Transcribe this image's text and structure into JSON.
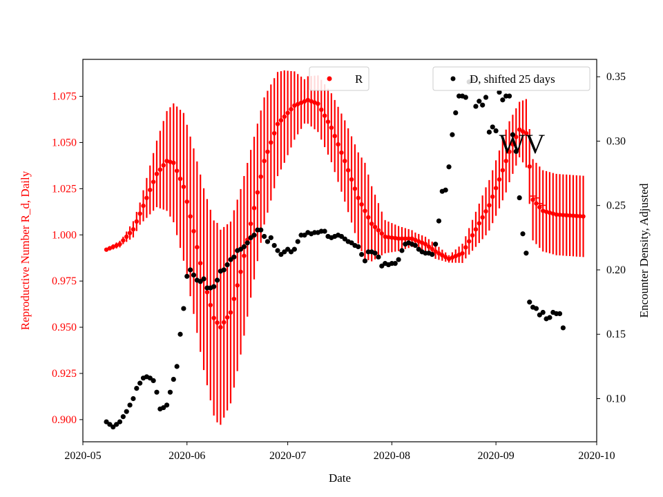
{
  "colors": {
    "r": "#ff0000",
    "d": "#000000"
  },
  "chart_data": {
    "type": "scatter",
    "xlabel": "Date",
    "ylabel_left": "Reproductive Number R_d, Daily",
    "ylabel_right": "Encounter Density, Adjusted",
    "annotation": "WV",
    "xlim": [
      "2020-05-01",
      "2020-10-01"
    ],
    "ylim_left": [
      0.888,
      1.095
    ],
    "ylim_right": [
      0.0665,
      0.3635
    ],
    "x_ticks": [
      "2020-05",
      "2020-06",
      "2020-07",
      "2020-08",
      "2020-09",
      "2020-10"
    ],
    "y_ticks_left": [
      "0.900",
      "0.925",
      "0.950",
      "0.975",
      "1.000",
      "1.025",
      "1.050",
      "1.075"
    ],
    "y_ticks_right": [
      "0.10",
      "0.15",
      "0.20",
      "0.25",
      "0.30",
      "0.35"
    ],
    "legend": {
      "r_label": "R",
      "d_label": "D, shifted 25 days",
      "placement": "top"
    },
    "r_series": {
      "start": "2020-05-08",
      "end": "2020-09-27",
      "ci_end": "2020-09-27",
      "value_knots": [
        [
          "2020-05-08",
          0.992
        ],
        [
          "2020-05-12",
          0.995
        ],
        [
          "2020-05-16",
          1.003
        ],
        [
          "2020-05-20",
          1.02
        ],
        [
          "2020-05-23",
          1.033
        ],
        [
          "2020-05-26",
          1.04
        ],
        [
          "2020-05-28",
          1.039
        ],
        [
          "2020-05-31",
          1.026
        ],
        [
          "2020-06-03",
          1.002
        ],
        [
          "2020-06-06",
          0.976
        ],
        [
          "2020-06-09",
          0.955
        ],
        [
          "2020-06-11",
          0.95
        ],
        [
          "2020-06-14",
          0.958
        ],
        [
          "2020-06-17",
          0.98
        ],
        [
          "2020-06-20",
          1.006
        ],
        [
          "2020-06-24",
          1.04
        ],
        [
          "2020-06-28",
          1.06
        ],
        [
          "2020-07-03",
          1.07
        ],
        [
          "2020-07-07",
          1.073
        ],
        [
          "2020-07-10",
          1.071
        ],
        [
          "2020-07-14",
          1.058
        ],
        [
          "2020-07-18",
          1.04
        ],
        [
          "2020-07-22",
          1.02
        ],
        [
          "2020-07-26",
          1.006
        ],
        [
          "2020-07-30",
          0.999
        ],
        [
          "2020-08-03",
          0.998
        ],
        [
          "2020-08-07",
          0.998
        ],
        [
          "2020-08-11",
          0.995
        ],
        [
          "2020-08-14",
          0.991
        ],
        [
          "2020-08-18",
          0.987
        ],
        [
          "2020-08-22",
          0.99
        ],
        [
          "2020-08-26",
          1.003
        ],
        [
          "2020-08-30",
          1.016
        ],
        [
          "2020-09-02",
          1.03
        ],
        [
          "2020-09-05",
          1.045
        ],
        [
          "2020-09-08",
          1.057
        ],
        [
          "2020-09-10",
          1.055
        ],
        [
          "2020-09-12",
          1.019
        ],
        [
          "2020-09-15",
          1.013
        ],
        [
          "2020-09-19",
          1.011
        ],
        [
          "2020-09-27",
          1.01
        ]
      ],
      "halfwidth_knots": [
        [
          "2020-05-08",
          0.001
        ],
        [
          "2020-05-13",
          0.002
        ],
        [
          "2020-05-18",
          0.006
        ],
        [
          "2020-05-23",
          0.018
        ],
        [
          "2020-05-26",
          0.027
        ],
        [
          "2020-05-31",
          0.04
        ],
        [
          "2020-06-05",
          0.048
        ],
        [
          "2020-06-10",
          0.054
        ],
        [
          "2020-06-15",
          0.048
        ],
        [
          "2020-06-20",
          0.04
        ],
        [
          "2020-06-25",
          0.033
        ],
        [
          "2020-06-30",
          0.025
        ],
        [
          "2020-07-06",
          0.012
        ],
        [
          "2020-07-12",
          0.017
        ],
        [
          "2020-07-18",
          0.022
        ],
        [
          "2020-07-24",
          0.026
        ],
        [
          "2020-07-30",
          0.009
        ],
        [
          "2020-08-08",
          0.004
        ],
        [
          "2020-08-14",
          0.004
        ],
        [
          "2020-08-18",
          0.002
        ],
        [
          "2020-08-23",
          0.006
        ],
        [
          "2020-08-29",
          0.013
        ],
        [
          "2020-09-04",
          0.017
        ],
        [
          "2020-09-08",
          0.015
        ],
        [
          "2020-09-12",
          0.022
        ],
        [
          "2020-09-18",
          0.022
        ],
        [
          "2020-09-27",
          0.022
        ]
      ],
      "extra_dashes": [
        [
          "2020-09-12",
          1.021
        ],
        [
          "2020-09-13",
          1.02
        ],
        [
          "2020-09-14",
          1.017
        ],
        [
          "2020-09-15",
          1.016
        ]
      ]
    },
    "d_series": {
      "start": "2020-05-08",
      "values": [
        0.082,
        0.08,
        0.078,
        0.08,
        0.082,
        0.086,
        0.09,
        0.095,
        0.1,
        0.108,
        0.112,
        0.116,
        0.117,
        0.116,
        0.114,
        0.105,
        0.092,
        0.093,
        0.095,
        0.105,
        0.115,
        0.125,
        0.15,
        0.17,
        0.195,
        0.2,
        0.196,
        0.192,
        0.191,
        0.193,
        0.186,
        0.186,
        0.187,
        0.192,
        0.199,
        0.2,
        0.204,
        0.208,
        0.21,
        0.215,
        0.216,
        0.218,
        0.221,
        0.225,
        0.227,
        0.231,
        0.231,
        0.226,
        0.222,
        0.225,
        0.219,
        0.215,
        0.212,
        0.214,
        0.216,
        0.214,
        0.216,
        0.222,
        0.227,
        0.227,
        0.229,
        0.228,
        0.229,
        0.229,
        0.23,
        0.23,
        0.226,
        0.225,
        0.226,
        0.227,
        0.226,
        0.224,
        0.222,
        0.221,
        0.219,
        0.218,
        0.212,
        0.207,
        0.214,
        0.214,
        0.213,
        0.21,
        0.203,
        0.205,
        0.204,
        0.205,
        0.205,
        0.208,
        0.215,
        0.22,
        0.221,
        0.22,
        0.219,
        0.216,
        0.214,
        0.213,
        0.213,
        0.212,
        0.22,
        0.238,
        0.261,
        0.262,
        0.28,
        0.305,
        0.322,
        0.335,
        0.335,
        0.334,
        0.346,
        0.348,
        0.327,
        0.331,
        0.328,
        0.334,
        0.307,
        0.311,
        0.308,
        0.338,
        0.332,
        0.335,
        0.335,
        0.305,
        0.292,
        0.256,
        0.228,
        0.213,
        0.175,
        0.171,
        0.17,
        0.165,
        0.167,
        0.162,
        0.163,
        0.167,
        0.166,
        0.166,
        0.155
      ]
    }
  }
}
